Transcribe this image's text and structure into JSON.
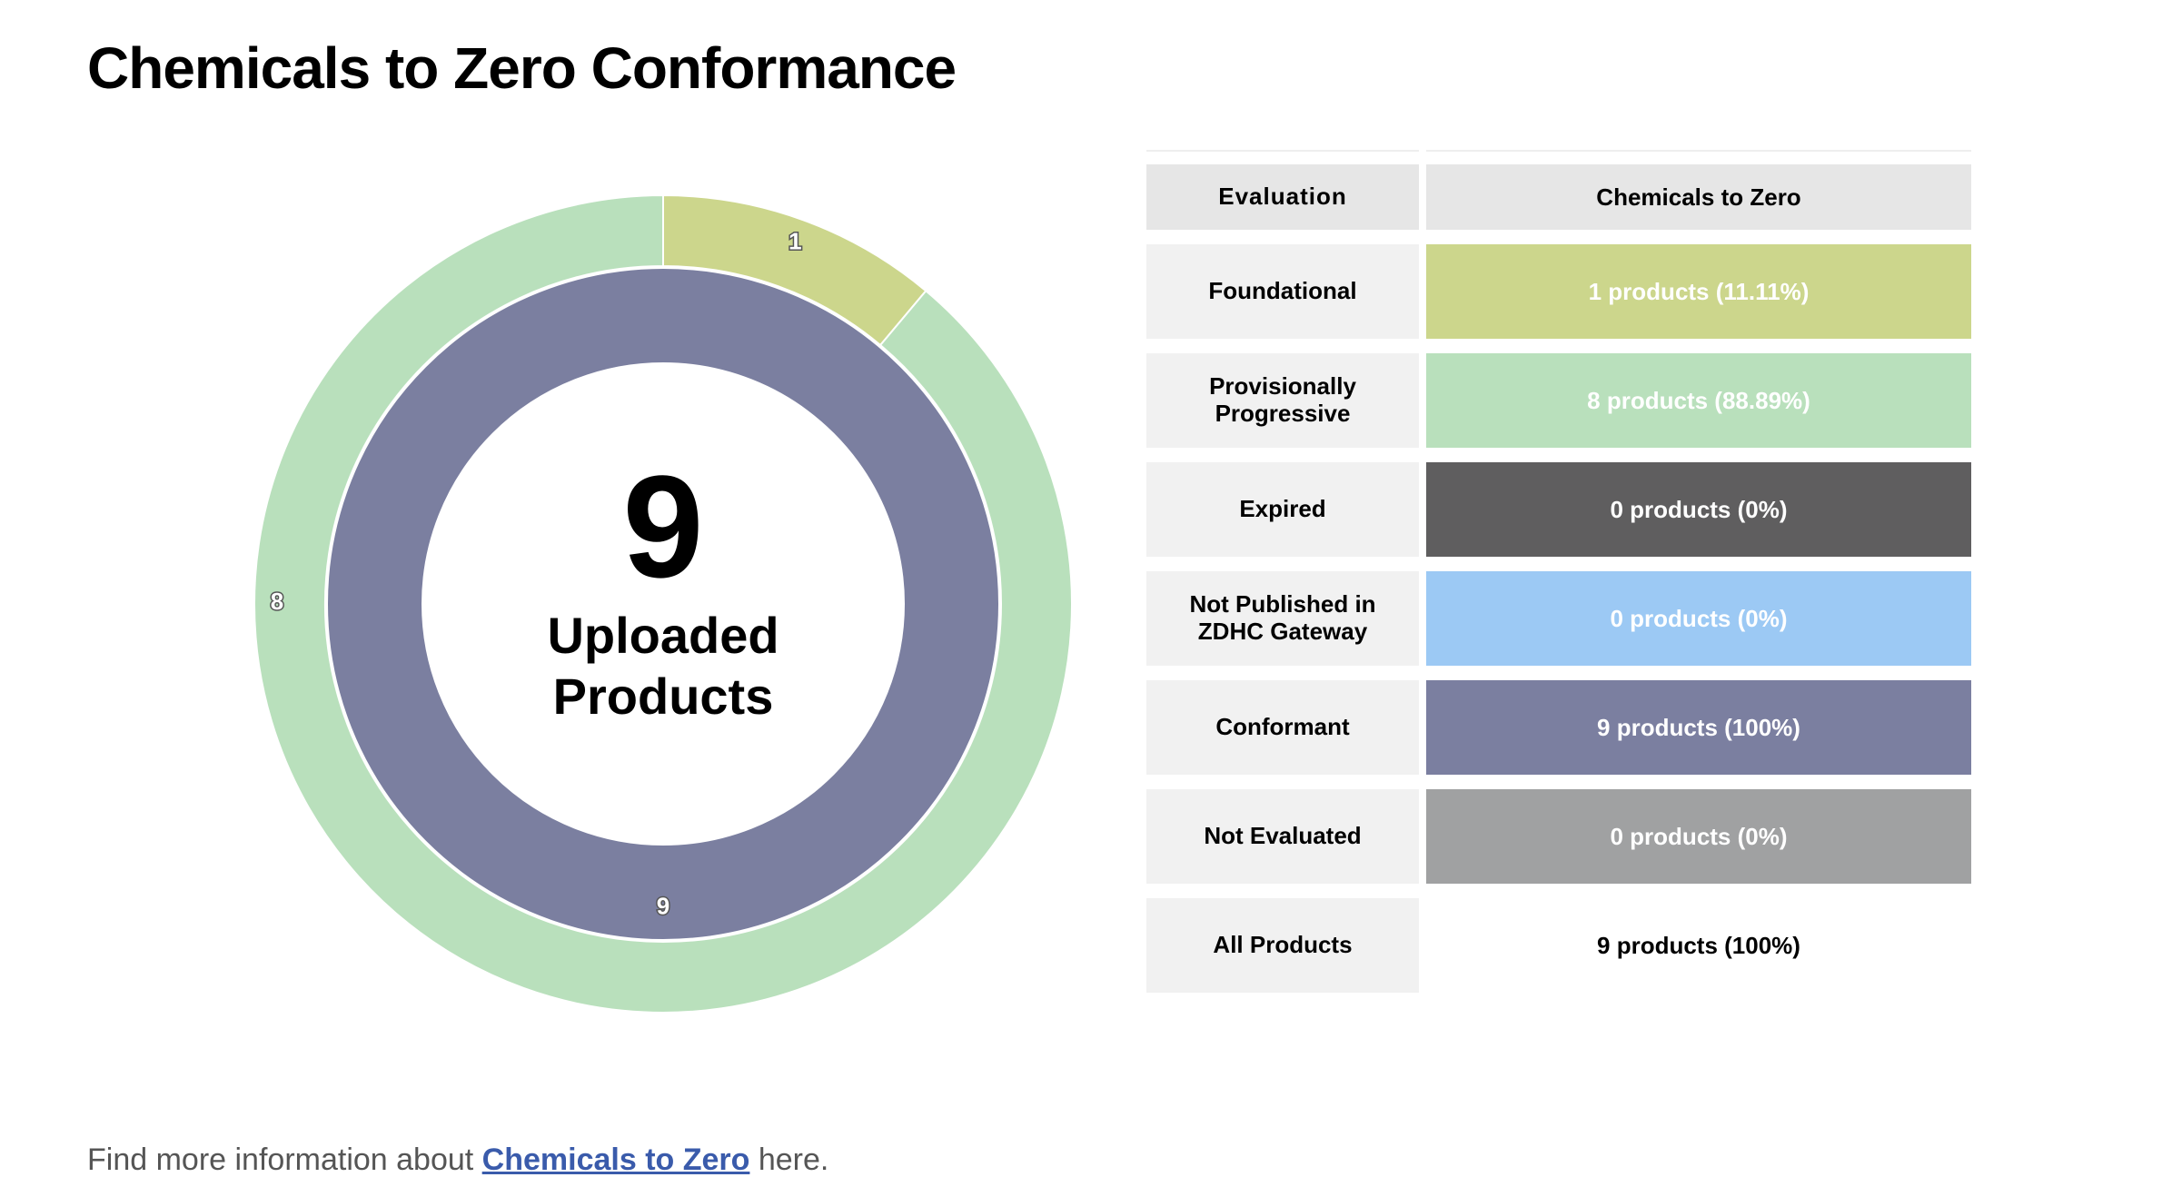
{
  "page": {
    "title": "Chemicals to Zero Conformance"
  },
  "center": {
    "number": "9",
    "label": "Uploaded\nProducts"
  },
  "chart_data": {
    "type": "pie",
    "title": "",
    "rings": [
      {
        "name": "",
        "ring": "inner",
        "slices": [
          {
            "label": "9",
            "value": 9,
            "color": "#7b7fa0"
          }
        ]
      },
      {
        "name": "",
        "ring": "outer",
        "slices": [
          {
            "label": "1",
            "value": 1,
            "color": "#ccd68c"
          },
          {
            "label": "8",
            "value": 8,
            "color": "#b9e0bc"
          }
        ]
      }
    ]
  },
  "table": {
    "headers": [
      "Evaluation",
      "Chemicals to Zero"
    ],
    "rows": [
      {
        "label": "Foundational",
        "value": "1 products (11.11%)",
        "bg": "#ccd68c",
        "fg": "#ffffff"
      },
      {
        "label": "Provisionally\nProgressive",
        "value": "8 products (88.89%)",
        "bg": "#b9e0bc",
        "fg": "#ffffff"
      },
      {
        "label": "Expired",
        "value": "0 products (0%)",
        "bg": "#5f5e5f",
        "fg": "#ffffff"
      },
      {
        "label": "Not Published in\nZDHC Gateway",
        "value": "0 products (0%)",
        "bg": "#9cc9f4",
        "fg": "#ffffff"
      },
      {
        "label": "Conformant",
        "value": "9 products (100%)",
        "bg": "#7b7fa0",
        "fg": "#ffffff"
      },
      {
        "label": "Not Evaluated",
        "value": "0 products (0%)",
        "bg": "#a0a1a2",
        "fg": "#ffffff"
      },
      {
        "label": "All Products",
        "value": "9 products (100%)",
        "bg": "#ffffff",
        "fg": "#000000"
      }
    ]
  },
  "footer": {
    "prefix": "Find more information about ",
    "link": "Chemicals to Zero",
    "suffix": " here."
  }
}
